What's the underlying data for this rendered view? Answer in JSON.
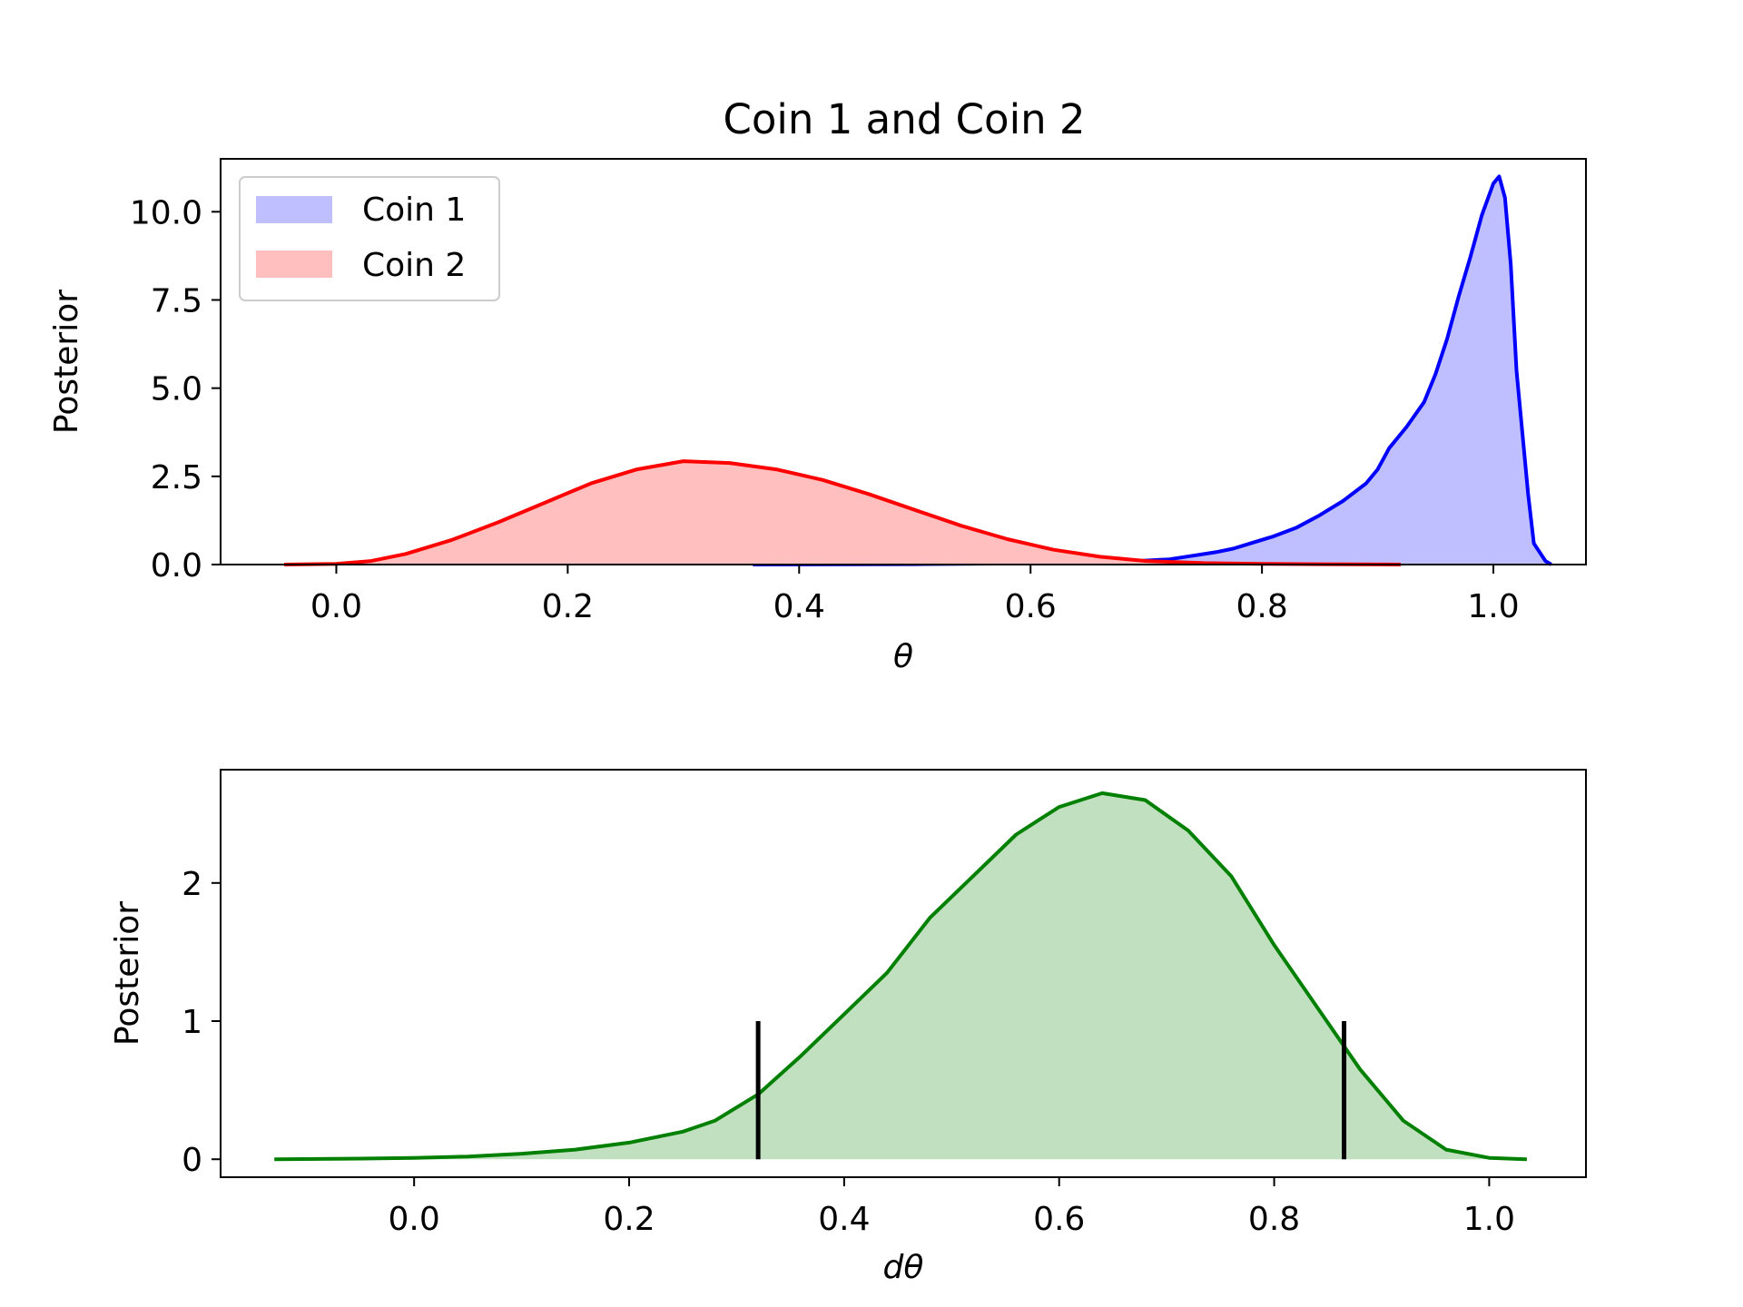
{
  "title": "Coin 1 and Coin 2",
  "chart_data": [
    {
      "type": "area",
      "ylabel": "Posterior",
      "xlabel": "θ",
      "xlim": [
        -0.1,
        1.08
      ],
      "ylim": [
        0,
        11.5
      ],
      "xticks": [
        0.0,
        0.2,
        0.4,
        0.6,
        0.8,
        1.0
      ],
      "xtick_labels": [
        "0.0",
        "0.2",
        "0.4",
        "0.6",
        "0.8",
        "1.0"
      ],
      "yticks": [
        0.0,
        2.5,
        5.0,
        7.5,
        10.0
      ],
      "ytick_labels": [
        "0.0",
        "2.5",
        "5.0",
        "7.5",
        "10.0"
      ],
      "legend_position": "top-left",
      "series": [
        {
          "name": "Coin 1",
          "line_color": "#0000ff",
          "fill_color": "#bfbfff",
          "points": [
            [
              0.36,
              0.0
            ],
            [
              0.5,
              0.01
            ],
            [
              0.6,
              0.03
            ],
            [
              0.68,
              0.08
            ],
            [
              0.72,
              0.15
            ],
            [
              0.74,
              0.25
            ],
            [
              0.76,
              0.35
            ],
            [
              0.775,
              0.45
            ],
            [
              0.79,
              0.6
            ],
            [
              0.81,
              0.8
            ],
            [
              0.83,
              1.05
            ],
            [
              0.85,
              1.4
            ],
            [
              0.87,
              1.8
            ],
            [
              0.89,
              2.3
            ],
            [
              0.9,
              2.7
            ],
            [
              0.91,
              3.3
            ],
            [
              0.925,
              3.9
            ],
            [
              0.94,
              4.6
            ],
            [
              0.95,
              5.4
            ],
            [
              0.96,
              6.4
            ],
            [
              0.97,
              7.6
            ],
            [
              0.98,
              8.7
            ],
            [
              0.99,
              9.9
            ],
            [
              1.0,
              10.8
            ],
            [
              1.005,
              11.0
            ],
            [
              1.01,
              10.4
            ],
            [
              1.015,
              8.5
            ],
            [
              1.02,
              5.5
            ],
            [
              1.03,
              2.0
            ],
            [
              1.035,
              0.6
            ],
            [
              1.045,
              0.1
            ],
            [
              1.05,
              0.0
            ]
          ]
        },
        {
          "name": "Coin 2",
          "line_color": "#ff0000",
          "fill_color": "#ffbfbf",
          "points": [
            [
              -0.045,
              0.0
            ],
            [
              0.0,
              0.02
            ],
            [
              0.03,
              0.1
            ],
            [
              0.06,
              0.3
            ],
            [
              0.1,
              0.7
            ],
            [
              0.14,
              1.2
            ],
            [
              0.18,
              1.75
            ],
            [
              0.22,
              2.3
            ],
            [
              0.26,
              2.7
            ],
            [
              0.3,
              2.93
            ],
            [
              0.34,
              2.88
            ],
            [
              0.38,
              2.7
            ],
            [
              0.42,
              2.4
            ],
            [
              0.46,
              2.0
            ],
            [
              0.5,
              1.55
            ],
            [
              0.54,
              1.1
            ],
            [
              0.58,
              0.72
            ],
            [
              0.62,
              0.42
            ],
            [
              0.66,
              0.22
            ],
            [
              0.7,
              0.1
            ],
            [
              0.75,
              0.04
            ],
            [
              0.8,
              0.02
            ],
            [
              0.85,
              0.01
            ],
            [
              0.92,
              0.0
            ]
          ]
        }
      ]
    },
    {
      "type": "area",
      "ylabel": "Posterior",
      "xlabel": "dθ",
      "xlim": [
        -0.18,
        1.09
      ],
      "ylim": [
        -0.13,
        2.82
      ],
      "xticks": [
        0.0,
        0.2,
        0.4,
        0.6,
        0.8,
        1.0
      ],
      "xtick_labels": [
        "0.0",
        "0.2",
        "0.4",
        "0.6",
        "0.8",
        "1.0"
      ],
      "yticks": [
        0,
        1,
        2
      ],
      "ytick_labels": [
        "0",
        "1",
        "2"
      ],
      "series": [
        {
          "line_color": "#008000",
          "fill_color": "#c0e0c0",
          "points": [
            [
              -0.13,
              0.0
            ],
            [
              -0.05,
              0.005
            ],
            [
              0.0,
              0.01
            ],
            [
              0.05,
              0.02
            ],
            [
              0.1,
              0.04
            ],
            [
              0.15,
              0.07
            ],
            [
              0.2,
              0.12
            ],
            [
              0.25,
              0.2
            ],
            [
              0.28,
              0.28
            ],
            [
              0.32,
              0.47
            ],
            [
              0.36,
              0.75
            ],
            [
              0.4,
              1.05
            ],
            [
              0.44,
              1.35
            ],
            [
              0.48,
              1.75
            ],
            [
              0.52,
              2.05
            ],
            [
              0.56,
              2.35
            ],
            [
              0.6,
              2.55
            ],
            [
              0.64,
              2.65
            ],
            [
              0.68,
              2.6
            ],
            [
              0.72,
              2.38
            ],
            [
              0.76,
              2.05
            ],
            [
              0.8,
              1.55
            ],
            [
              0.84,
              1.1
            ],
            [
              0.88,
              0.65
            ],
            [
              0.92,
              0.28
            ],
            [
              0.96,
              0.07
            ],
            [
              1.0,
              0.01
            ],
            [
              1.035,
              0.0
            ]
          ]
        }
      ],
      "interval_markers": [
        {
          "x": 0.32,
          "y0": 0,
          "y1": 1
        },
        {
          "x": 0.865,
          "y0": 0,
          "y1": 1
        }
      ],
      "marker_color": "#000000"
    }
  ]
}
